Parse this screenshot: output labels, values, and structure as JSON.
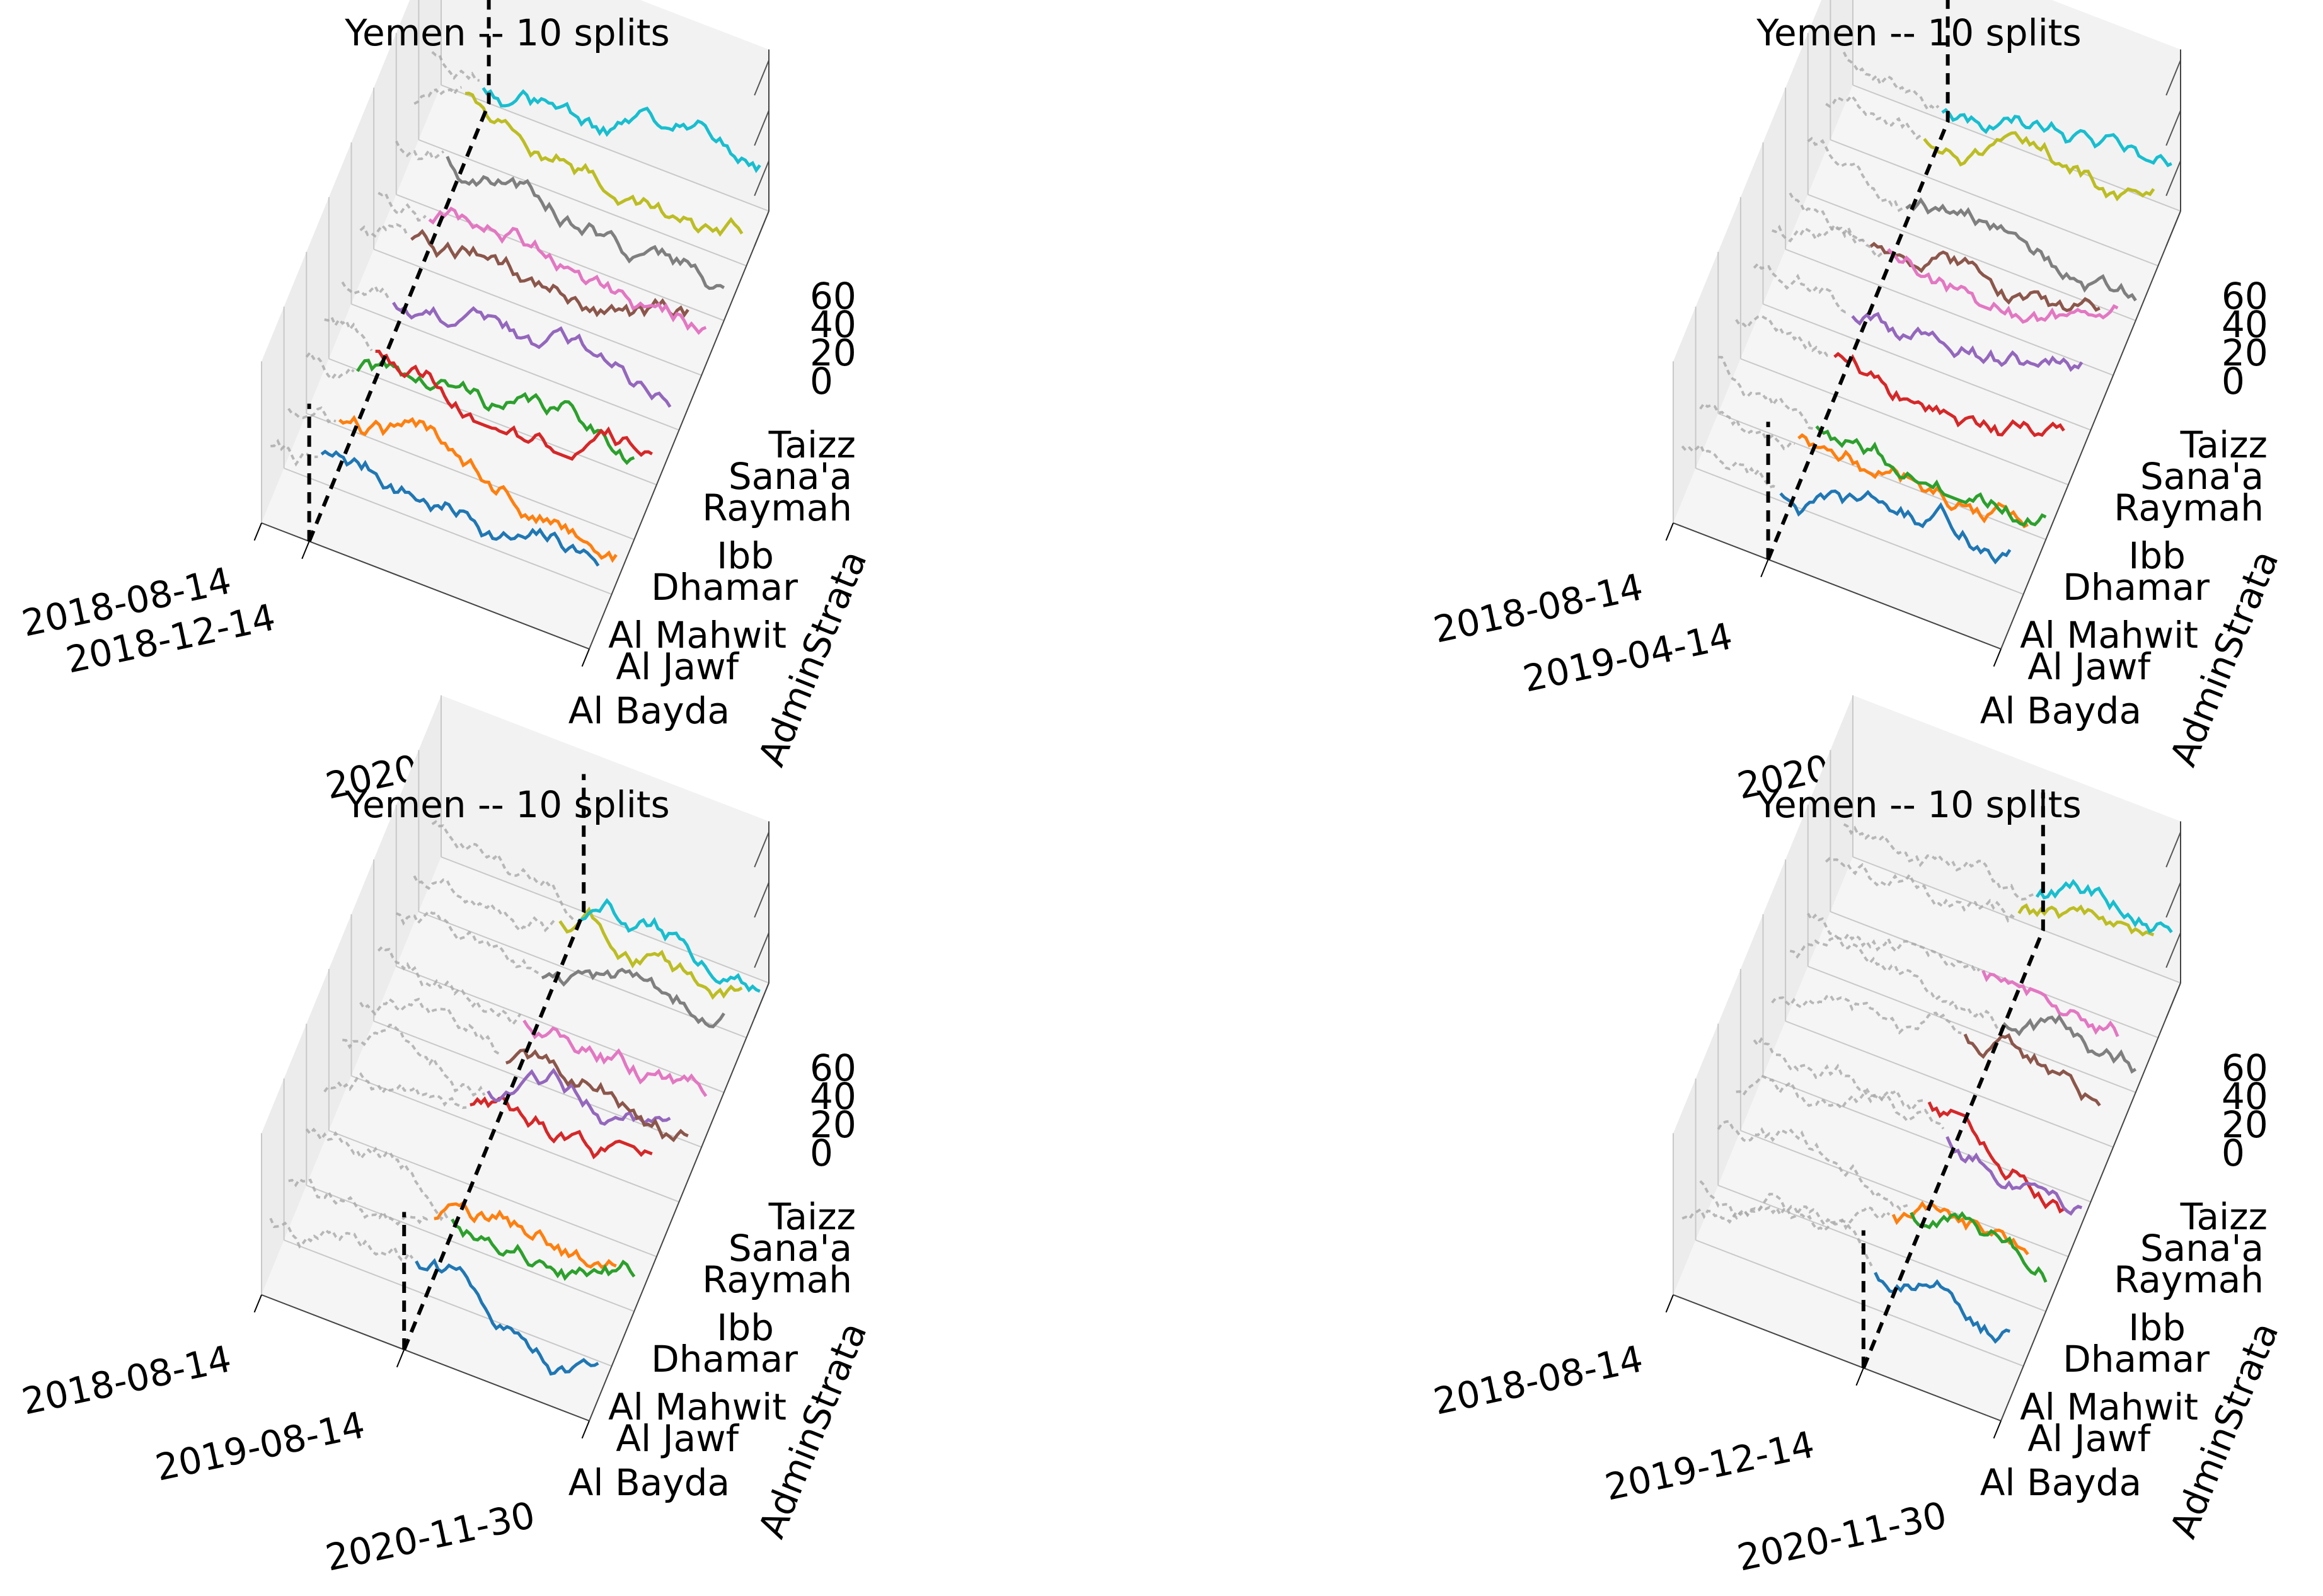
{
  "chart_data": [
    {
      "type": "line",
      "title": "Yemen -- 10 splits",
      "zlabel": "AdminStrata",
      "ztick_labels": [
        "0",
        "20",
        "40",
        "60"
      ],
      "zlim": [
        0,
        70
      ],
      "x_tick_labels": [
        "2018-08-14",
        "2018-12-14",
        "2020-11-30"
      ],
      "split_date": "2018-12-14",
      "strata_tick_labels": [
        "Al Bayda",
        "Al Jawf",
        "Al Mahwit",
        "Dhamar",
        "Ibb",
        "Raymah",
        "Sana'a",
        "Taizz"
      ]
    },
    {
      "type": "line",
      "title": "Yemen -- 10 splits",
      "zlabel": "AdminStrata",
      "ztick_labels": [
        "0",
        "20",
        "40",
        "60"
      ],
      "zlim": [
        0,
        70
      ],
      "x_tick_labels": [
        "2018-08-14",
        "2019-04-14",
        "2020-11-30"
      ],
      "split_date": "2019-04-14",
      "strata_tick_labels": [
        "Al Bayda",
        "Al Jawf",
        "Al Mahwit",
        "Dhamar",
        "Ibb",
        "Raymah",
        "Sana'a",
        "Taizz"
      ]
    },
    {
      "type": "line",
      "title": "Yemen -- 10 splits",
      "zlabel": "AdminStrata",
      "ztick_labels": [
        "0",
        "20",
        "40",
        "60"
      ],
      "zlim": [
        0,
        70
      ],
      "x_tick_labels": [
        "2018-08-14",
        "2019-08-14",
        "2020-11-30"
      ],
      "split_date": "2019-08-14",
      "strata_tick_labels": [
        "Al Bayda",
        "Al Jawf",
        "Al Mahwit",
        "Dhamar",
        "Ibb",
        "Raymah",
        "Sana'a",
        "Taizz"
      ]
    },
    {
      "type": "line",
      "title": "Yemen -- 10 splits",
      "zlabel": "AdminStrata",
      "ztick_labels": [
        "0",
        "20",
        "40",
        "60"
      ],
      "zlim": [
        0,
        70
      ],
      "x_tick_labels": [
        "2018-08-14",
        "2019-12-14",
        "2020-11-30"
      ],
      "split_date": "2019-12-14",
      "strata_tick_labels": [
        "Al Bayda",
        "Al Jawf",
        "Al Mahwit",
        "Dhamar",
        "Ibb",
        "Raymah",
        "Sana'a",
        "Taizz"
      ]
    }
  ],
  "colors": {
    "series": [
      "#1f77b4",
      "#ff7f0e",
      "#2ca02c",
      "#d62728",
      "#9467bd",
      "#8c564b",
      "#e377c2",
      "#7f7f7f",
      "#bcbd22",
      "#17becf"
    ],
    "history": "#a8a8a8",
    "split_line": "#000000",
    "pane": "#f2f2f2",
    "grid": "#c8c8c8"
  }
}
